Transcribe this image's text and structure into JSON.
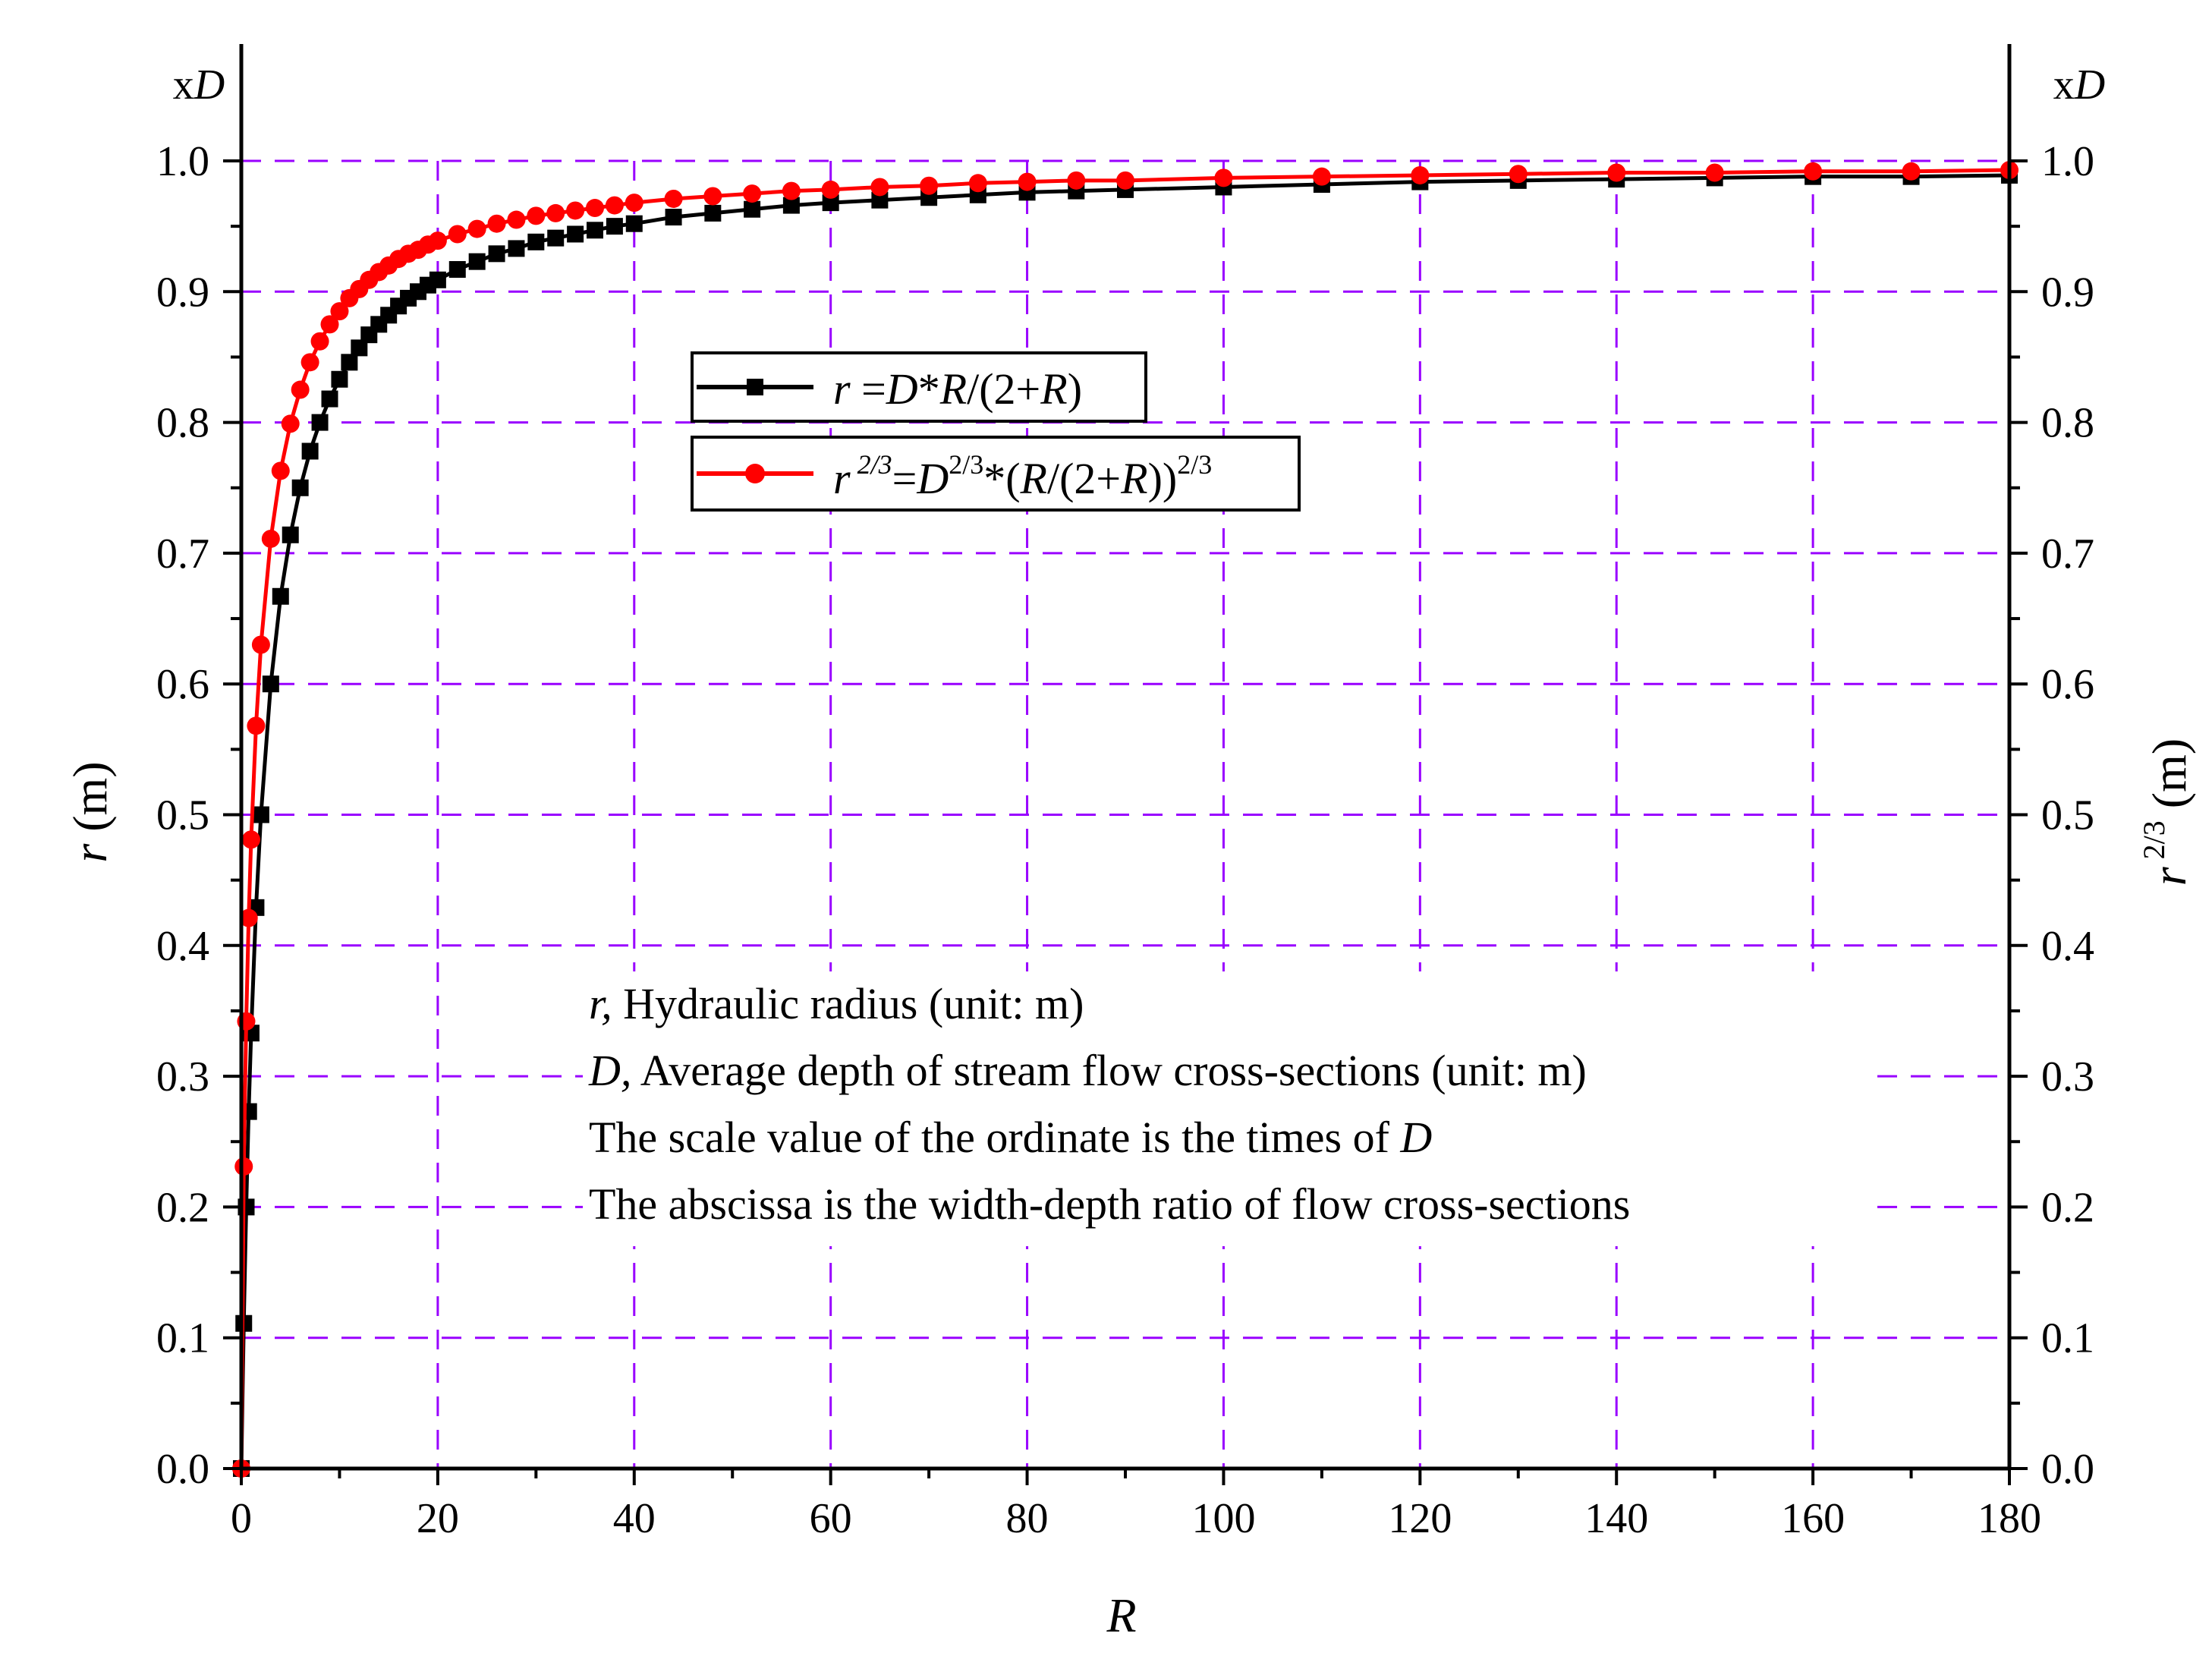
{
  "chart_data": {
    "type": "line",
    "x": [
      0,
      0.25,
      0.5,
      0.75,
      1,
      1.5,
      2,
      3,
      4,
      5,
      6,
      7,
      8,
      9,
      10,
      11,
      12,
      13,
      14,
      15,
      16,
      17,
      18,
      19,
      20,
      22,
      24,
      26,
      28,
      30,
      32,
      34,
      36,
      38,
      40,
      44,
      48,
      52,
      56,
      60,
      65,
      70,
      75,
      80,
      85,
      90,
      100,
      110,
      120,
      130,
      140,
      150,
      160,
      170,
      180
    ],
    "series": [
      {
        "name": "r =D*R/(2+R)",
        "formula": "R/(2+R)",
        "values": [
          0.0,
          0.111,
          0.2,
          0.273,
          0.333,
          0.429,
          0.5,
          0.6,
          0.667,
          0.714,
          0.75,
          0.778,
          0.8,
          0.818,
          0.833,
          0.846,
          0.857,
          0.867,
          0.875,
          0.882,
          0.889,
          0.895,
          0.9,
          0.905,
          0.909,
          0.917,
          0.923,
          0.929,
          0.933,
          0.938,
          0.941,
          0.944,
          0.947,
          0.95,
          0.952,
          0.957,
          0.96,
          0.963,
          0.966,
          0.968,
          0.97,
          0.972,
          0.974,
          0.976,
          0.977,
          0.978,
          0.98,
          0.982,
          0.984,
          0.985,
          0.986,
          0.987,
          0.988,
          0.988,
          0.989
        ],
        "color": "#000000",
        "marker": "square"
      },
      {
        "name": "r2/3=D2/3*(R/(2+R))2/3",
        "formula": "(R/(2+R))^(2/3)",
        "values": [
          0.0,
          0.231,
          0.342,
          0.421,
          0.481,
          0.568,
          0.63,
          0.711,
          0.763,
          0.799,
          0.825,
          0.846,
          0.862,
          0.875,
          0.885,
          0.895,
          0.902,
          0.909,
          0.915,
          0.92,
          0.925,
          0.929,
          0.932,
          0.936,
          0.939,
          0.944,
          0.948,
          0.952,
          0.955,
          0.958,
          0.96,
          0.962,
          0.964,
          0.966,
          0.968,
          0.971,
          0.973,
          0.975,
          0.977,
          0.978,
          0.98,
          0.981,
          0.983,
          0.984,
          0.985,
          0.985,
          0.987,
          0.988,
          0.989,
          0.99,
          0.991,
          0.991,
          0.992,
          0.992,
          0.993
        ],
        "color": "#ff0000",
        "marker": "circle"
      }
    ],
    "xlabel": "R",
    "ylabel_left": "r (m)",
    "ylabel_right": "r 2/3 (m)",
    "y_unit_marker": "xD",
    "xlim": [
      0,
      180
    ],
    "ylim": [
      0.0,
      1.0
    ],
    "x_ticks": [
      0,
      20,
      40,
      60,
      80,
      100,
      120,
      140,
      160,
      180
    ],
    "y_ticks": [
      "0.0",
      "0.1",
      "0.2",
      "0.3",
      "0.4",
      "0.5",
      "0.6",
      "0.7",
      "0.8",
      "0.9",
      "1.0"
    ],
    "grid": true,
    "grid_color": "#9900ff",
    "legend_position": "upper-center",
    "legend": [
      {
        "text": "r =D*R/(2+R)"
      },
      {
        "text": "r2/3=D2/3*(R/(2+R))2/3"
      }
    ],
    "annotations": [
      {
        "lead": "r,",
        "text": " Hydraulic radius (unit: m)"
      },
      {
        "lead": "D,",
        "text": " Average depth of stream flow cross-sections (unit: m)"
      },
      {
        "lead": "",
        "text": "The scale value of the ordinate is the times of ",
        "tail": "D"
      },
      {
        "lead": "",
        "text": "The abscissa is the width-depth ratio of flow cross-sections"
      }
    ]
  }
}
